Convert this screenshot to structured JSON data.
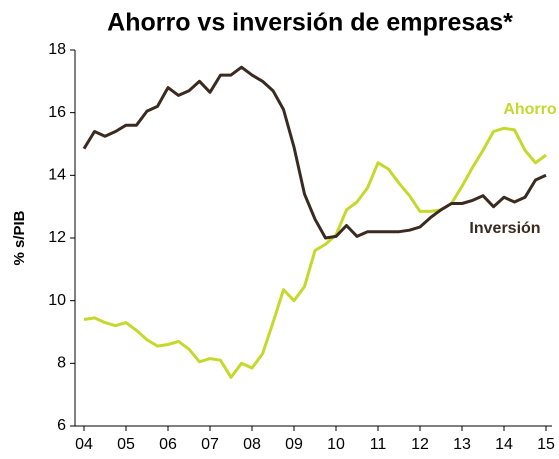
{
  "chart_data": {
    "type": "line",
    "title": "Ahorro vs inversión de empresas*",
    "y_label": "% s/PIB",
    "x": [
      4,
      4.25,
      4.5,
      4.75,
      5,
      5.25,
      5.5,
      5.75,
      6,
      6.25,
      6.5,
      6.75,
      7,
      7.25,
      7.5,
      7.75,
      8,
      8.25,
      8.5,
      8.75,
      9,
      9.25,
      9.5,
      9.75,
      10,
      10.25,
      10.5,
      10.75,
      11,
      11.25,
      11.5,
      11.75,
      12,
      12.25,
      12.5,
      12.75,
      13,
      13.25,
      13.5,
      13.75,
      14,
      14.25,
      14.5,
      14.75,
      15
    ],
    "series": [
      {
        "name": "Ahorro",
        "color": "#c5d92d",
        "values": [
          9.4,
          9.45,
          9.3,
          9.2,
          9.3,
          9.05,
          8.75,
          8.55,
          8.6,
          8.7,
          8.45,
          8.05,
          8.15,
          8.1,
          7.55,
          8.0,
          7.85,
          8.3,
          9.3,
          10.35,
          10.0,
          10.45,
          11.6,
          11.8,
          12.1,
          12.9,
          13.15,
          13.6,
          14.4,
          14.2,
          13.75,
          13.35,
          12.85,
          12.85,
          12.9,
          13.1,
          13.65,
          14.25,
          14.8,
          15.4,
          15.5,
          15.45,
          14.8,
          14.4,
          14.65
        ]
      },
      {
        "name": "Inversión",
        "color": "#3b2a20",
        "values": [
          14.85,
          15.4,
          15.25,
          15.4,
          15.6,
          15.6,
          16.05,
          16.2,
          16.8,
          16.55,
          16.7,
          17.0,
          16.65,
          17.2,
          17.2,
          17.45,
          17.2,
          17.0,
          16.7,
          16.1,
          14.9,
          13.4,
          12.6,
          12.0,
          12.05,
          12.4,
          12.05,
          12.2,
          12.2,
          12.2,
          12.2,
          12.25,
          12.35,
          12.65,
          12.9,
          13.1,
          13.1,
          13.2,
          13.35,
          13.0,
          13.3,
          13.15,
          13.3,
          13.85,
          14.0
        ]
      }
    ],
    "xlim": [
      4,
      15
    ],
    "xticks": [
      {
        "value": 4,
        "label": "04"
      },
      {
        "value": 5,
        "label": "05"
      },
      {
        "value": 6,
        "label": "06"
      },
      {
        "value": 7,
        "label": "07"
      },
      {
        "value": 8,
        "label": "08"
      },
      {
        "value": 9,
        "label": "09"
      },
      10,
      11,
      12,
      13,
      14,
      15
    ],
    "ylim": [
      6,
      18
    ],
    "yticks": [
      6,
      8,
      10,
      12,
      14,
      16,
      18
    ],
    "grid": false
  }
}
